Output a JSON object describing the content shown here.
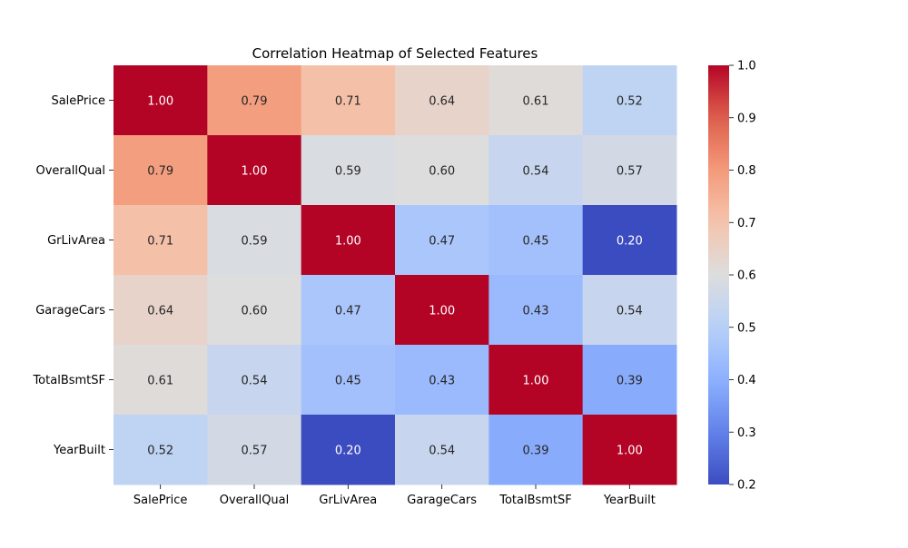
{
  "chart_data": {
    "type": "heatmap",
    "title": "Correlation Heatmap of Selected Features",
    "rows": [
      "SalePrice",
      "OverallQual",
      "GrLivArea",
      "GarageCars",
      "TotalBsmtSF",
      "YearBuilt"
    ],
    "columns": [
      "SalePrice",
      "OverallQual",
      "GrLivArea",
      "GarageCars",
      "TotalBsmtSF",
      "YearBuilt"
    ],
    "values": [
      [
        1.0,
        0.79,
        0.71,
        0.64,
        0.61,
        0.52
      ],
      [
        0.79,
        1.0,
        0.59,
        0.6,
        0.54,
        0.57
      ],
      [
        0.71,
        0.59,
        1.0,
        0.47,
        0.45,
        0.2
      ],
      [
        0.64,
        0.6,
        0.47,
        1.0,
        0.43,
        0.54
      ],
      [
        0.61,
        0.54,
        0.45,
        0.43,
        1.0,
        0.39
      ],
      [
        0.52,
        0.57,
        0.2,
        0.54,
        0.39,
        1.0
      ]
    ],
    "value_format": "2 decimals",
    "colormap": "coolwarm",
    "vmin": 0.2,
    "vmax": 1.0,
    "colorbar_ticks": [
      "0.2",
      "0.3",
      "0.4",
      "0.5",
      "0.6",
      "0.7",
      "0.8",
      "0.9",
      "1.0"
    ],
    "colorbar_tick_values": [
      0.2,
      0.3,
      0.4,
      0.5,
      0.6,
      0.7,
      0.8,
      0.9,
      1.0
    ],
    "colorbar_placement": "right",
    "annotation_colors": {
      "dark": "#262626",
      "light": "#ffffff"
    }
  }
}
